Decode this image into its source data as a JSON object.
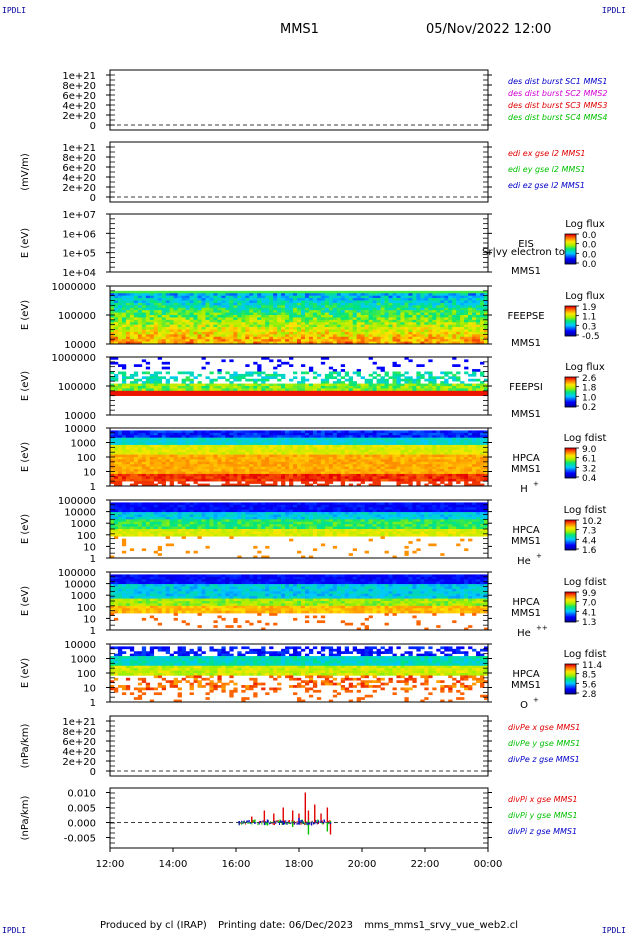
{
  "header": {
    "corner_tl": "IPDLI",
    "corner_tr": "IPDLI",
    "corner_bl": "IPDLI",
    "corner_br": "IPDLI",
    "title": "MMS1",
    "date": "05/Nov/2022 12:00"
  },
  "footer": {
    "produced": "Produced by cl (IRAP)",
    "printing": "Printing date: 06/Dec/2023",
    "file": "mms_mms1_srvy_vue_web2.cl"
  },
  "chart_data": {
    "type": "multi-panel",
    "time_axis": {
      "ticks": [
        "12:00",
        "14:00",
        "16:00",
        "18:00",
        "20:00",
        "22:00",
        "00:00"
      ],
      "range_hours": [
        12,
        24
      ]
    },
    "panels": [
      {
        "type": "line",
        "yticks": [
          "1e+21",
          "8e+20",
          "6e+20",
          "4e+20",
          "2e+20",
          "0"
        ],
        "ylim": [
          -1e+20,
          1.1e+21
        ],
        "ylabel": "",
        "series": [
          {
            "name": "des dist burst SC1 MMS1",
            "color": "#0000c8",
            "values": []
          },
          {
            "name": "des dist burst SC2 MMS2",
            "color": "#d000d0",
            "values": []
          },
          {
            "name": "des dist burst SC3 MMS3",
            "color": "#e00000",
            "values": []
          },
          {
            "name": "des dist burst SC4 MMS4",
            "color": "#00c000",
            "values": []
          }
        ]
      },
      {
        "type": "line",
        "yticks": [
          "1e+21",
          "8e+20",
          "6e+20",
          "4e+20",
          "2e+20",
          "0"
        ],
        "ylim": [
          -1e+20,
          1.1e+21
        ],
        "ylabel": "(mV/m)",
        "series": [
          {
            "name": "edi ex gse l2 MMS1",
            "color": "#e00000",
            "values": []
          },
          {
            "name": "edi ey gse l2 MMS1",
            "color": "#00c000",
            "values": []
          },
          {
            "name": "edi ez gse l2 MMS1",
            "color": "#0000c8",
            "values": []
          }
        ]
      },
      {
        "type": "heatmap",
        "yticks": [
          "1e+07",
          "1e+06",
          "1e+05",
          "1e+04"
        ],
        "ylabel": "E (eV)",
        "instrument": [
          "EIS",
          "MMS1"
        ],
        "overlay": "Sr|vy electron to",
        "colorbar": {
          "label": "Log flux",
          "ticks": [
            "0.0",
            "0.0",
            "0.0",
            "0.0"
          ]
        },
        "empty": true
      },
      {
        "type": "heatmap",
        "yticks": [
          "1000000",
          "100000",
          "10000"
        ],
        "ylabel": "E (eV)",
        "instrument": [
          "FEEPSE",
          "MMS1"
        ],
        "colorbar": {
          "label": "Log flux",
          "ticks": [
            "1.9",
            "1.1",
            "0.3",
            "-0.5"
          ]
        }
      },
      {
        "type": "heatmap",
        "yticks": [
          "1000000",
          "100000",
          "10000"
        ],
        "ylabel": "E (eV)",
        "instrument": [
          "FEEPSI",
          "MMS1"
        ],
        "colorbar": {
          "label": "Log flux",
          "ticks": [
            "2.6",
            "1.8",
            "1.0",
            "0.2"
          ]
        }
      },
      {
        "type": "heatmap",
        "yticks": [
          "10000",
          "1000",
          "100",
          "10",
          "1"
        ],
        "ylabel": "E (eV)",
        "instrument": [
          "HPCA",
          "MMS1"
        ],
        "species": "H",
        "charge": "+",
        "colorbar": {
          "label": "Log fdist",
          "ticks": [
            "9.0",
            "6.1",
            "3.2",
            "0.4"
          ]
        }
      },
      {
        "type": "heatmap",
        "yticks": [
          "100000",
          "10000",
          "1000",
          "100",
          "10",
          "1"
        ],
        "ylabel": "E (eV)",
        "instrument": [
          "HPCA",
          "MMS1"
        ],
        "species": "He",
        "charge": "+",
        "colorbar": {
          "label": "Log fdist",
          "ticks": [
            "10.2",
            "7.3",
            "4.4",
            "1.6"
          ]
        }
      },
      {
        "type": "heatmap",
        "yticks": [
          "100000",
          "10000",
          "1000",
          "100",
          "10",
          "1"
        ],
        "ylabel": "E (eV)",
        "instrument": [
          "HPCA",
          "MMS1"
        ],
        "species": "He",
        "charge": "++",
        "colorbar": {
          "label": "Log fdist",
          "ticks": [
            "9.9",
            "7.0",
            "4.1",
            "1.3"
          ]
        }
      },
      {
        "type": "heatmap",
        "yticks": [
          "10000",
          "1000",
          "100",
          "10",
          "1"
        ],
        "ylabel": "E (eV)",
        "instrument": [
          "HPCA",
          "MMS1"
        ],
        "species": "O",
        "charge": "+",
        "colorbar": {
          "label": "Log fdist",
          "ticks": [
            "11.4",
            "8.5",
            "5.6",
            "2.8"
          ]
        }
      },
      {
        "type": "line",
        "yticks": [
          "1e+21",
          "8e+20",
          "6e+20",
          "4e+20",
          "2e+20",
          "0"
        ],
        "ylim": [
          -1e+20,
          1.1e+21
        ],
        "ylabel": "(nPa/km)",
        "series": [
          {
            "name": "divPe x gse MMS1",
            "color": "#e00000",
            "values": []
          },
          {
            "name": "divPe y gse MMS1",
            "color": "#00c000",
            "values": []
          },
          {
            "name": "divPe z gse MMS1",
            "color": "#0000c8",
            "values": []
          }
        ]
      },
      {
        "type": "line",
        "yticks": [
          "0.010",
          "0.005",
          "0.000",
          "-0.005"
        ],
        "ytick_values": [
          0.01,
          0.005,
          0.0,
          -0.005
        ],
        "ylim": [
          -0.0085,
          0.0115
        ],
        "ylabel": "(nPa/km)",
        "series": [
          {
            "name": "divPi x gse MMS1",
            "color": "#e00000",
            "x": [
              16.1,
              16.5,
              16.9,
              17.2,
              17.5,
              17.8,
              18.0,
              18.2,
              18.3,
              18.5,
              18.7,
              18.9,
              19.0
            ],
            "values": [
              0.0005,
              0.002,
              0.004,
              0.003,
              0.005,
              0.004,
              0.003,
              0.01,
              0.004,
              0.006,
              0.003,
              0.005,
              -0.004
            ]
          },
          {
            "name": "divPi y gse MMS1",
            "color": "#00c000",
            "x": [
              16.1,
              16.6,
              17.0,
              17.4,
              17.8,
              18.1,
              18.3,
              18.6,
              18.9,
              19.0
            ],
            "values": [
              -0.0005,
              0.001,
              -0.001,
              0.001,
              -0.0015,
              0.001,
              -0.004,
              0.001,
              -0.003,
              0.0005
            ]
          },
          {
            "name": "divPi z gse MMS1",
            "color": "#0000c8",
            "x": [
              16.1,
              16.6,
              17.0,
              17.5,
              18.0,
              18.4,
              18.8,
              19.0
            ],
            "values": [
              0.0005,
              -0.0005,
              0.001,
              -0.0008,
              0.0015,
              -0.001,
              0.001,
              -0.0005
            ]
          }
        ]
      }
    ]
  }
}
